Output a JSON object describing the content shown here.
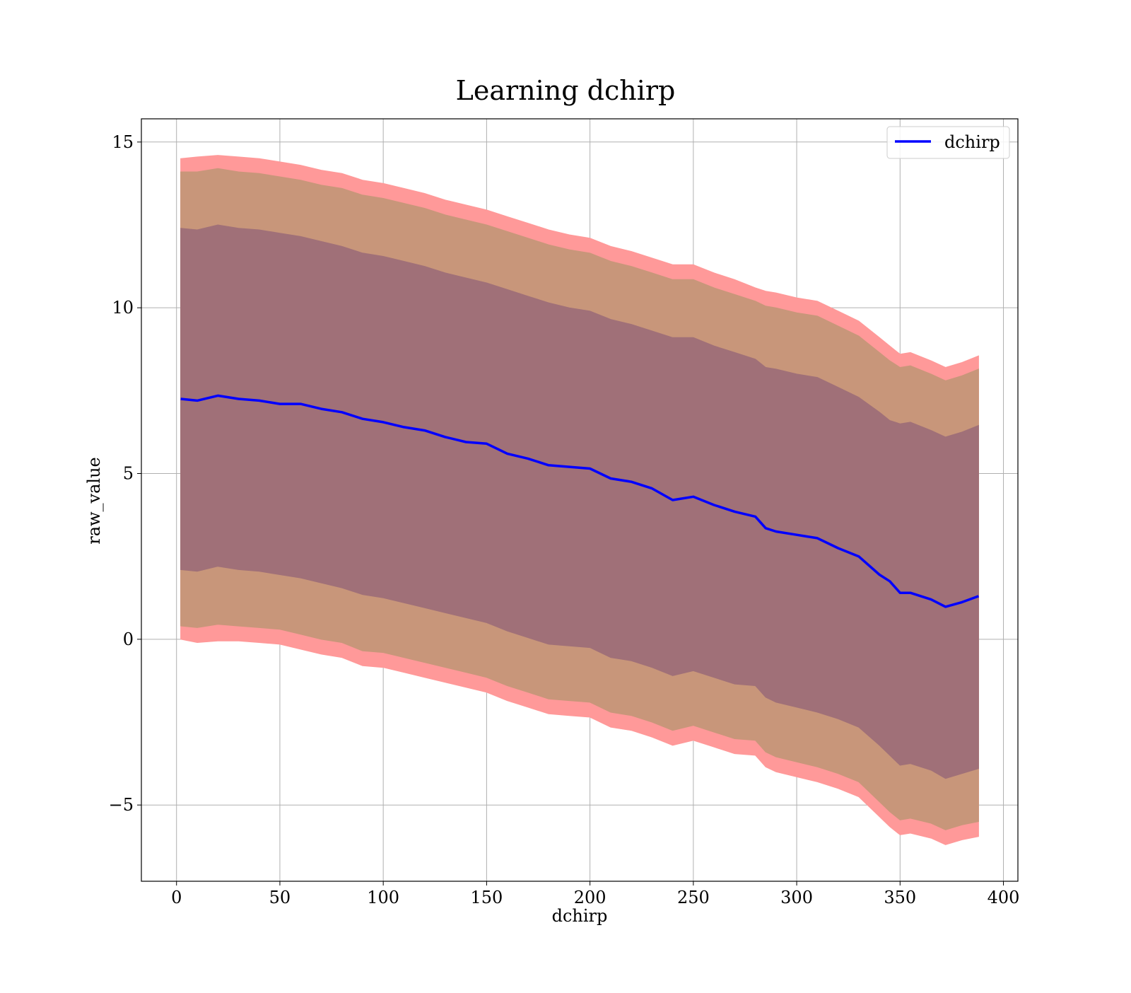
{
  "chart_data": {
    "type": "area",
    "title": "Learning dchirp",
    "xlabel": "dchirp",
    "ylabel": "raw_value",
    "xlim": [
      -17,
      407
    ],
    "ylim": [
      -7.3,
      15.7
    ],
    "xticks": [
      0,
      50,
      100,
      150,
      200,
      250,
      300,
      350,
      400
    ],
    "yticks": [
      -5,
      0,
      5,
      10,
      15
    ],
    "ytick_labels": [
      "−5",
      "0",
      "5",
      "10",
      "15"
    ],
    "grid": true,
    "legend": {
      "position": "top-right",
      "entries": [
        "dchirp"
      ]
    },
    "colors": {
      "line": "#0000ff",
      "outer_band": "#ff9999",
      "middle_band": "#c8967a",
      "inner_band": "#a07078",
      "grid": "#b0b0b0"
    },
    "series": [
      {
        "name": "dchirp",
        "x": [
          2,
          10,
          20,
          30,
          40,
          50,
          60,
          70,
          80,
          90,
          100,
          110,
          120,
          130,
          140,
          150,
          160,
          170,
          180,
          190,
          200,
          210,
          220,
          230,
          240,
          250,
          260,
          270,
          280,
          285,
          290,
          300,
          310,
          320,
          330,
          340,
          345,
          350,
          355,
          365,
          372,
          380,
          388
        ],
        "y": [
          7.25,
          7.2,
          7.35,
          7.25,
          7.2,
          7.1,
          7.1,
          6.95,
          6.85,
          6.65,
          6.55,
          6.4,
          6.3,
          6.1,
          5.95,
          5.9,
          5.6,
          5.45,
          5.25,
          5.2,
          5.15,
          4.85,
          4.75,
          4.55,
          4.2,
          4.3,
          4.05,
          3.85,
          3.7,
          3.35,
          3.25,
          3.15,
          3.05,
          2.75,
          2.5,
          1.95,
          1.75,
          1.4,
          1.4,
          1.2,
          0.98,
          1.12,
          1.3
        ]
      }
    ],
    "bands": [
      {
        "level": "outer",
        "upper": [
          14.5,
          14.55,
          14.6,
          14.55,
          14.5,
          14.4,
          14.3,
          14.15,
          14.05,
          13.85,
          13.75,
          13.6,
          13.45,
          13.25,
          13.1,
          12.95,
          12.75,
          12.55,
          12.35,
          12.2,
          12.1,
          11.85,
          11.7,
          11.5,
          11.3,
          11.3,
          11.05,
          10.85,
          10.6,
          10.5,
          10.45,
          10.3,
          10.2,
          9.9,
          9.6,
          9.1,
          8.85,
          8.6,
          8.65,
          8.4,
          8.2,
          8.35,
          8.55
        ],
        "lower": [
          0.0,
          -0.1,
          -0.05,
          -0.05,
          -0.1,
          -0.15,
          -0.3,
          -0.45,
          -0.55,
          -0.8,
          -0.85,
          -1.0,
          -1.15,
          -1.3,
          -1.45,
          -1.6,
          -1.85,
          -2.05,
          -2.25,
          -2.3,
          -2.35,
          -2.65,
          -2.75,
          -2.95,
          -3.2,
          -3.05,
          -3.25,
          -3.45,
          -3.5,
          -3.85,
          -4.0,
          -4.15,
          -4.3,
          -4.5,
          -4.75,
          -5.35,
          -5.65,
          -5.9,
          -5.85,
          -6.0,
          -6.2,
          -6.05,
          -5.95
        ]
      },
      {
        "level": "middle",
        "upper": [
          14.1,
          14.1,
          14.2,
          14.1,
          14.05,
          13.95,
          13.85,
          13.7,
          13.6,
          13.4,
          13.3,
          13.15,
          13.0,
          12.8,
          12.65,
          12.5,
          12.3,
          12.1,
          11.9,
          11.75,
          11.65,
          11.4,
          11.25,
          11.05,
          10.85,
          10.85,
          10.6,
          10.4,
          10.2,
          10.05,
          10.0,
          9.85,
          9.75,
          9.45,
          9.15,
          8.65,
          8.4,
          8.2,
          8.25,
          8.0,
          7.8,
          7.95,
          8.15
        ],
        "lower": [
          0.4,
          0.35,
          0.45,
          0.4,
          0.35,
          0.3,
          0.15,
          0.0,
          -0.1,
          -0.35,
          -0.4,
          -0.55,
          -0.7,
          -0.85,
          -1.0,
          -1.15,
          -1.4,
          -1.6,
          -1.8,
          -1.85,
          -1.9,
          -2.2,
          -2.3,
          -2.5,
          -2.75,
          -2.6,
          -2.8,
          -3.0,
          -3.05,
          -3.4,
          -3.55,
          -3.7,
          -3.85,
          -4.05,
          -4.3,
          -4.9,
          -5.2,
          -5.45,
          -5.4,
          -5.55,
          -5.75,
          -5.6,
          -5.5
        ]
      },
      {
        "level": "inner",
        "upper": [
          12.4,
          12.35,
          12.5,
          12.4,
          12.35,
          12.25,
          12.15,
          12.0,
          11.85,
          11.65,
          11.55,
          11.4,
          11.25,
          11.05,
          10.9,
          10.75,
          10.55,
          10.35,
          10.15,
          10.0,
          9.9,
          9.65,
          9.5,
          9.3,
          9.1,
          9.1,
          8.85,
          8.65,
          8.45,
          8.2,
          8.15,
          8.0,
          7.9,
          7.6,
          7.3,
          6.85,
          6.6,
          6.5,
          6.55,
          6.3,
          6.1,
          6.25,
          6.45
        ],
        "lower": [
          2.1,
          2.05,
          2.2,
          2.1,
          2.05,
          1.95,
          1.85,
          1.7,
          1.55,
          1.35,
          1.25,
          1.1,
          0.95,
          0.8,
          0.65,
          0.5,
          0.25,
          0.05,
          -0.15,
          -0.2,
          -0.25,
          -0.55,
          -0.65,
          -0.85,
          -1.1,
          -0.95,
          -1.15,
          -1.35,
          -1.4,
          -1.75,
          -1.9,
          -2.05,
          -2.2,
          -2.4,
          -2.65,
          -3.2,
          -3.5,
          -3.8,
          -3.75,
          -3.95,
          -4.2,
          -4.05,
          -3.9
        ]
      }
    ]
  }
}
